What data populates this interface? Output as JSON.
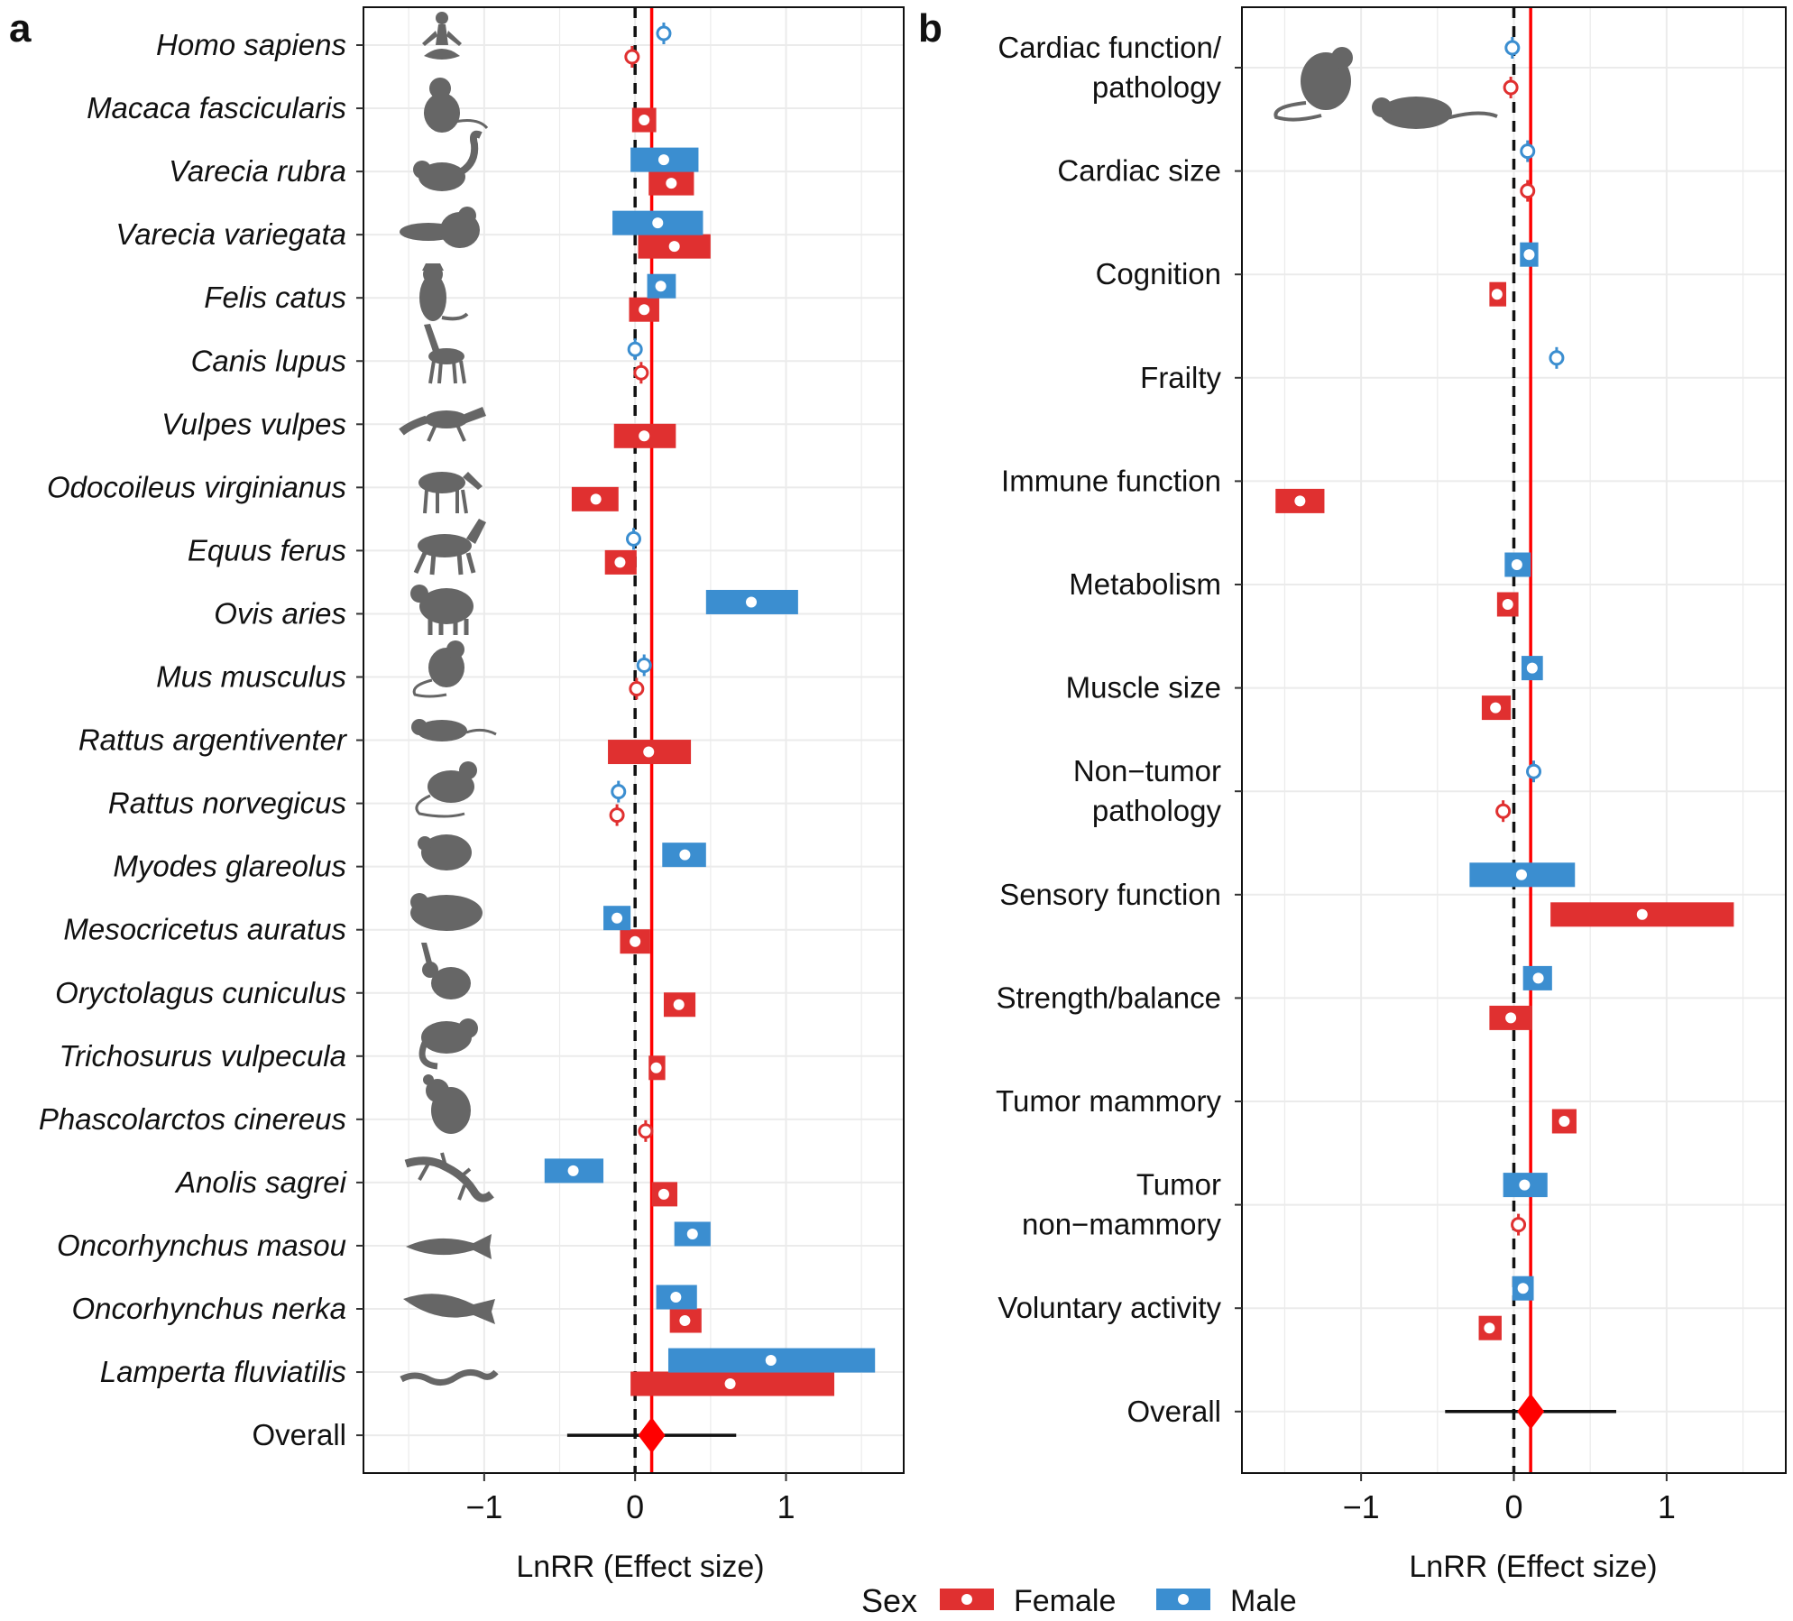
{
  "colors": {
    "female": "#e03030",
    "male": "#3b8ed0",
    "overall_marker": "#ff0000",
    "silhouette": "#666666"
  },
  "legend": {
    "title": "Sex",
    "items": [
      {
        "label": "Female",
        "color": "#e03030"
      },
      {
        "label": "Male",
        "color": "#3b8ed0"
      }
    ]
  },
  "chart_data": [
    {
      "type": "forest",
      "panel_label": "a",
      "xlabel": "LnRR (Effect size)",
      "xlim": [
        -1.8,
        1.78
      ],
      "xticks": [
        -1,
        0,
        1
      ],
      "xtick_labels": [
        "−1",
        "0",
        "1"
      ],
      "reference_line": 0,
      "overall_line": 0.11,
      "grid": true,
      "categories": [
        "Homo sapiens",
        "Macaca fascicularis",
        "Varecia rubra",
        "Varecia variegata",
        "Felis catus",
        "Canis lupus",
        "Vulpes vulpes",
        "Odocoileus virginianus",
        "Equus ferus",
        "Ovis aries",
        "Mus musculus",
        "Rattus argentiventer",
        "Rattus norvegicus",
        "Myodes glareolus",
        "Mesocricetus auratus",
        "Oryctolagus cuniculus",
        "Trichosurus vulpecula",
        "Phascolarctos cinereus",
        "Anolis sagrei",
        "Oncorhynchus masou",
        "Oncorhynchus nerka",
        "Lamperta fluviatilis"
      ],
      "series": [
        {
          "name": "Female",
          "points": [
            {
              "category": "Homo sapiens",
              "value": -0.02,
              "lo": -0.06,
              "hi": 0.02
            },
            {
              "category": "Macaca fascicularis",
              "value": 0.06,
              "lo": -0.02,
              "hi": 0.14
            },
            {
              "category": "Varecia rubra",
              "value": 0.24,
              "lo": 0.09,
              "hi": 0.39
            },
            {
              "category": "Varecia variegata",
              "value": 0.26,
              "lo": 0.02,
              "hi": 0.5
            },
            {
              "category": "Felis catus",
              "value": 0.06,
              "lo": -0.04,
              "hi": 0.16
            },
            {
              "category": "Canis lupus",
              "value": 0.04,
              "lo": 0.0,
              "hi": 0.08
            },
            {
              "category": "Vulpes vulpes",
              "value": 0.06,
              "lo": -0.14,
              "hi": 0.27
            },
            {
              "category": "Odocoileus virginianus",
              "value": -0.26,
              "lo": -0.42,
              "hi": -0.11
            },
            {
              "category": "Equus ferus",
              "value": -0.1,
              "lo": -0.2,
              "hi": 0.01
            },
            {
              "category": "Mus musculus",
              "value": 0.01,
              "lo": -0.03,
              "hi": 0.05
            },
            {
              "category": "Rattus argentiventer",
              "value": 0.09,
              "lo": -0.18,
              "hi": 0.37
            },
            {
              "category": "Rattus norvegicus",
              "value": -0.12,
              "lo": -0.16,
              "hi": -0.08
            },
            {
              "category": "Mesocricetus auratus",
              "value": 0.0,
              "lo": -0.1,
              "hi": 0.1
            },
            {
              "category": "Oryctolagus cuniculus",
              "value": 0.29,
              "lo": 0.19,
              "hi": 0.4
            },
            {
              "category": "Trichosurus vulpecula",
              "value": 0.14,
              "lo": 0.09,
              "hi": 0.2
            },
            {
              "category": "Phascolarctos cinereus",
              "value": 0.07,
              "lo": 0.03,
              "hi": 0.11
            },
            {
              "category": "Anolis sagrei",
              "value": 0.19,
              "lo": 0.11,
              "hi": 0.28
            },
            {
              "category": "Oncorhynchus nerka",
              "value": 0.33,
              "lo": 0.23,
              "hi": 0.44
            },
            {
              "category": "Lamperta fluviatilis",
              "value": 0.63,
              "lo": -0.03,
              "hi": 1.32
            }
          ]
        },
        {
          "name": "Male",
          "points": [
            {
              "category": "Homo sapiens",
              "value": 0.19,
              "lo": 0.15,
              "hi": 0.23
            },
            {
              "category": "Varecia rubra",
              "value": 0.19,
              "lo": -0.03,
              "hi": 0.42
            },
            {
              "category": "Varecia variegata",
              "value": 0.15,
              "lo": -0.15,
              "hi": 0.45
            },
            {
              "category": "Felis catus",
              "value": 0.17,
              "lo": 0.08,
              "hi": 0.27
            },
            {
              "category": "Canis lupus",
              "value": 0.0,
              "lo": -0.04,
              "hi": 0.04
            },
            {
              "category": "Equus ferus",
              "value": -0.01,
              "lo": -0.05,
              "hi": 0.03
            },
            {
              "category": "Ovis aries",
              "value": 0.77,
              "lo": 0.47,
              "hi": 1.08
            },
            {
              "category": "Mus musculus",
              "value": 0.06,
              "lo": 0.02,
              "hi": 0.1
            },
            {
              "category": "Rattus norvegicus",
              "value": -0.11,
              "lo": -0.15,
              "hi": -0.07
            },
            {
              "category": "Myodes glareolus",
              "value": 0.33,
              "lo": 0.18,
              "hi": 0.47
            },
            {
              "category": "Mesocricetus auratus",
              "value": -0.12,
              "lo": -0.21,
              "hi": -0.03
            },
            {
              "category": "Anolis sagrei",
              "value": -0.41,
              "lo": -0.6,
              "hi": -0.21
            },
            {
              "category": "Oncorhynchus masou",
              "value": 0.38,
              "lo": 0.26,
              "hi": 0.5
            },
            {
              "category": "Oncorhynchus nerka",
              "value": 0.27,
              "lo": 0.14,
              "hi": 0.41
            },
            {
              "category": "Lamperta fluviatilis",
              "value": 0.9,
              "lo": 0.22,
              "hi": 1.59
            }
          ]
        }
      ],
      "overall": {
        "label": "Overall",
        "value": 0.11,
        "lo": -0.45,
        "hi": 0.67
      }
    },
    {
      "type": "forest",
      "panel_label": "b",
      "xlabel": "LnRR (Effect size)",
      "xlim": [
        -1.78,
        1.78
      ],
      "xticks": [
        -1,
        0,
        1
      ],
      "xtick_labels": [
        "−1",
        "0",
        "1"
      ],
      "reference_line": 0,
      "overall_line": 0.11,
      "grid": true,
      "categories": [
        "Cardiac function/\npathology",
        "Cardiac size",
        "Cognition",
        "Frailty",
        "Immune function",
        "Metabolism",
        "Muscle size",
        "Non−tumor\npathology",
        "Sensory function",
        "Strength/balance",
        "Tumor mammory",
        "Tumor\nnon−mammory",
        "Voluntary activity"
      ],
      "series": [
        {
          "name": "Female",
          "points": [
            {
              "category": "Cardiac function/\npathology",
              "value": -0.02,
              "lo": -0.06,
              "hi": 0.02
            },
            {
              "category": "Cardiac size",
              "value": 0.09,
              "lo": 0.05,
              "hi": 0.13
            },
            {
              "category": "Cognition",
              "value": -0.11,
              "lo": -0.16,
              "hi": -0.05
            },
            {
              "category": "Immune function",
              "value": -1.4,
              "lo": -1.56,
              "hi": -1.24
            },
            {
              "category": "Metabolism",
              "value": -0.04,
              "lo": -0.11,
              "hi": 0.03
            },
            {
              "category": "Muscle size",
              "value": -0.12,
              "lo": -0.21,
              "hi": -0.02
            },
            {
              "category": "Non−tumor\npathology",
              "value": -0.07,
              "lo": -0.11,
              "hi": -0.03
            },
            {
              "category": "Sensory function",
              "value": 0.84,
              "lo": 0.24,
              "hi": 1.44
            },
            {
              "category": "Strength/balance",
              "value": -0.02,
              "lo": -0.16,
              "hi": 0.12
            },
            {
              "category": "Tumor mammory",
              "value": 0.33,
              "lo": 0.25,
              "hi": 0.41
            },
            {
              "category": "Tumor\nnon−mammory",
              "value": 0.03,
              "lo": -0.01,
              "hi": 0.07
            },
            {
              "category": "Voluntary activity",
              "value": -0.16,
              "lo": -0.23,
              "hi": -0.08
            }
          ]
        },
        {
          "name": "Male",
          "points": [
            {
              "category": "Cardiac function/\npathology",
              "value": -0.01,
              "lo": -0.05,
              "hi": 0.03
            },
            {
              "category": "Cardiac size",
              "value": 0.09,
              "lo": 0.05,
              "hi": 0.13
            },
            {
              "category": "Cognition",
              "value": 0.1,
              "lo": 0.04,
              "hi": 0.16
            },
            {
              "category": "Frailty",
              "value": 0.28,
              "lo": 0.24,
              "hi": 0.32
            },
            {
              "category": "Metabolism",
              "value": 0.02,
              "lo": -0.06,
              "hi": 0.11
            },
            {
              "category": "Muscle size",
              "value": 0.12,
              "lo": 0.05,
              "hi": 0.19
            },
            {
              "category": "Non−tumor\npathology",
              "value": 0.13,
              "lo": 0.09,
              "hi": 0.17
            },
            {
              "category": "Sensory function",
              "value": 0.05,
              "lo": -0.29,
              "hi": 0.4
            },
            {
              "category": "Strength/balance",
              "value": 0.16,
              "lo": 0.06,
              "hi": 0.25
            },
            {
              "category": "Tumor\nnon−mammory",
              "value": 0.07,
              "lo": -0.07,
              "hi": 0.22
            },
            {
              "category": "Voluntary activity",
              "value": 0.06,
              "lo": -0.01,
              "hi": 0.13
            }
          ]
        }
      ],
      "overall": {
        "label": "Overall",
        "value": 0.11,
        "lo": -0.45,
        "hi": 0.67
      }
    }
  ]
}
